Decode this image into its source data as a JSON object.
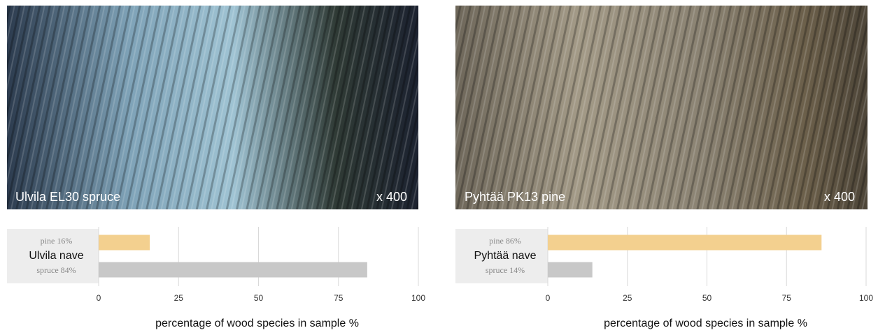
{
  "images": [
    {
      "caption": "Ulvila EL30 spruce",
      "magnification": "x 400"
    },
    {
      "caption": "Pyhtää PK13 pine",
      "magnification": "x 400"
    }
  ],
  "chart_data": [
    {
      "type": "bar",
      "orientation": "horizontal",
      "group_label": "Ulvila nave",
      "categories": [
        "pine 16%",
        "spruce 84%"
      ],
      "values": [
        16,
        84
      ],
      "colors": [
        "#f3d08f",
        "#c8c8c8"
      ],
      "xlim": [
        0,
        100
      ],
      "xticks": [
        0,
        25,
        50,
        75,
        100
      ],
      "grid": true,
      "xlabel": "percentage of wood species in sample %"
    },
    {
      "type": "bar",
      "orientation": "horizontal",
      "group_label": "Pyhtää nave",
      "categories": [
        "pine 86%",
        "spruce 14%"
      ],
      "values": [
        86,
        14
      ],
      "colors": [
        "#f3d08f",
        "#c8c8c8"
      ],
      "xlim": [
        0,
        100
      ],
      "xticks": [
        0,
        25,
        50,
        75,
        100
      ],
      "grid": true,
      "xlabel": "percentage of wood species in sample %"
    }
  ]
}
